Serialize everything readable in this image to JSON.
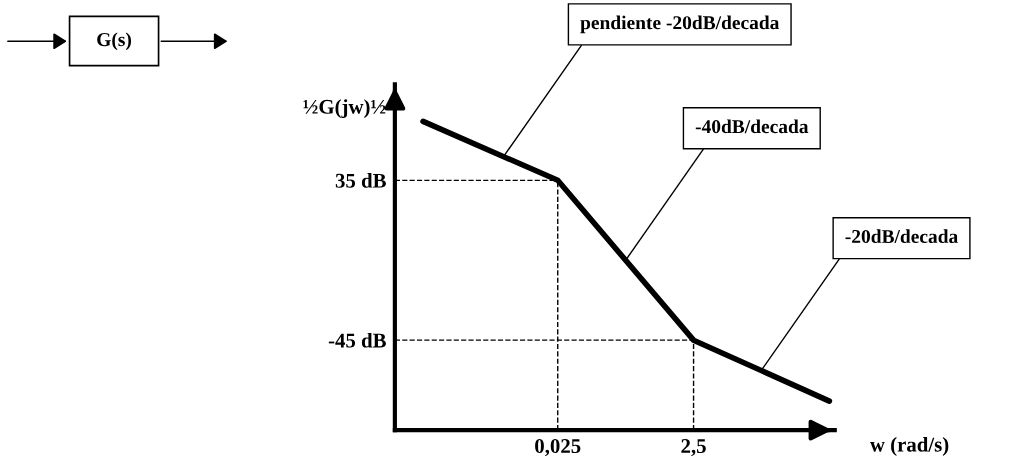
{
  "chart_data": {
    "type": "line",
    "xlabel": "w (rad/s)",
    "ylabel": "½G(jw)½",
    "log": "x",
    "xlim": [
      0.0001,
      300
    ],
    "ylim": [
      -90,
      83
    ],
    "xticks": [
      {
        "value": 0.025,
        "label": "0,025"
      },
      {
        "value": 2.5,
        "label": "2,5"
      }
    ],
    "yticks": [
      {
        "value": 35,
        "label": "35 dB"
      },
      {
        "value": -45,
        "label": "-45 dB"
      }
    ],
    "x": [
      0.00026,
      0.025,
      2.5,
      250
    ],
    "series": [
      {
        "color": "#000000",
        "values": [
          64.5,
          35,
          -45,
          -75.5
        ]
      }
    ],
    "ref_lines": [
      {
        "axis": "y",
        "value": 35,
        "line_style": "dashed"
      },
      {
        "axis": "y",
        "value": -45,
        "line_style": "dashed"
      },
      {
        "axis": "x",
        "value": 0.025,
        "line_style": "dashed"
      },
      {
        "axis": "x",
        "value": 2.5,
        "line_style": "dashed"
      }
    ],
    "annotations": [
      "G(s)",
      {
        "text": "pendiente -20dB/decada",
        "x": 0.004,
        "y": 47
      },
      {
        "text": "-40dB/decada",
        "x": 0.25,
        "y": -5
      },
      {
        "text": "-20dB/decada",
        "x": 25,
        "y": -60
      }
    ],
    "grid": false,
    "marker": "none",
    "line_style": "solid"
  }
}
